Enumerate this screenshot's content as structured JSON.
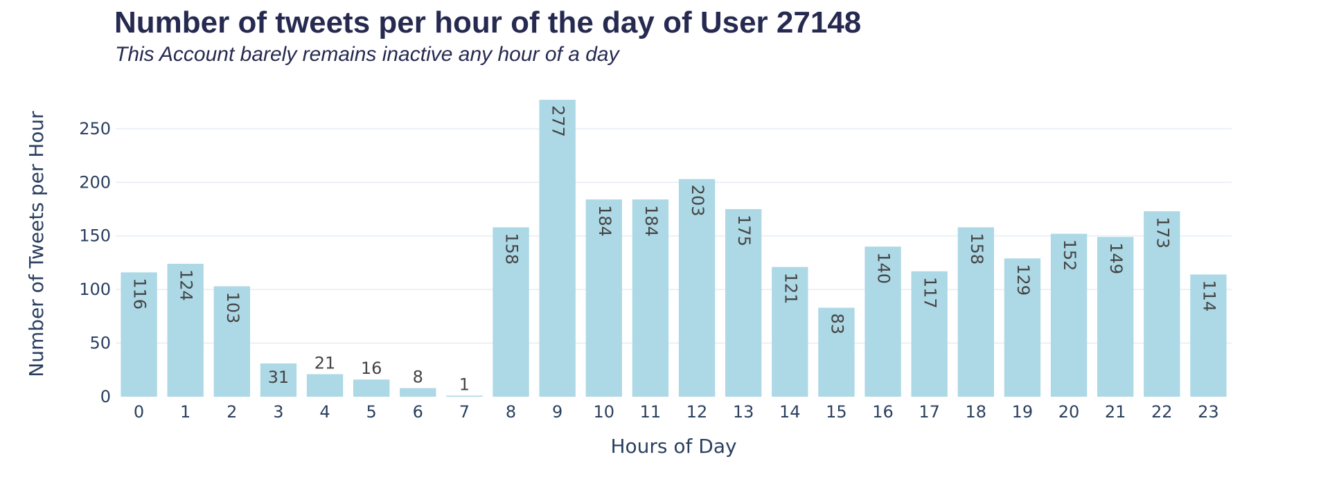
{
  "chart_data": {
    "type": "bar",
    "title": "Number of tweets per hour of the day of User 27148",
    "subtitle": "This Account barely remains inactive any hour of a day",
    "xlabel": "Hours of Day",
    "ylabel": "Number of Tweets per Hour",
    "categories": [
      "0",
      "1",
      "2",
      "3",
      "4",
      "5",
      "6",
      "7",
      "8",
      "9",
      "10",
      "11",
      "12",
      "13",
      "14",
      "15",
      "16",
      "17",
      "18",
      "19",
      "20",
      "21",
      "22",
      "23"
    ],
    "values": [
      116,
      124,
      103,
      31,
      21,
      16,
      8,
      1,
      158,
      277,
      184,
      184,
      203,
      175,
      121,
      83,
      140,
      117,
      158,
      129,
      152,
      149,
      173,
      114
    ],
    "yticks": [
      0,
      50,
      100,
      150,
      200,
      250
    ],
    "ylim": [
      0,
      277
    ],
    "grid": true,
    "bar_color": "#add8e6",
    "text_color": "#2a3f5f",
    "label_color": "#444444",
    "grid_color": "#ebf0f8"
  }
}
